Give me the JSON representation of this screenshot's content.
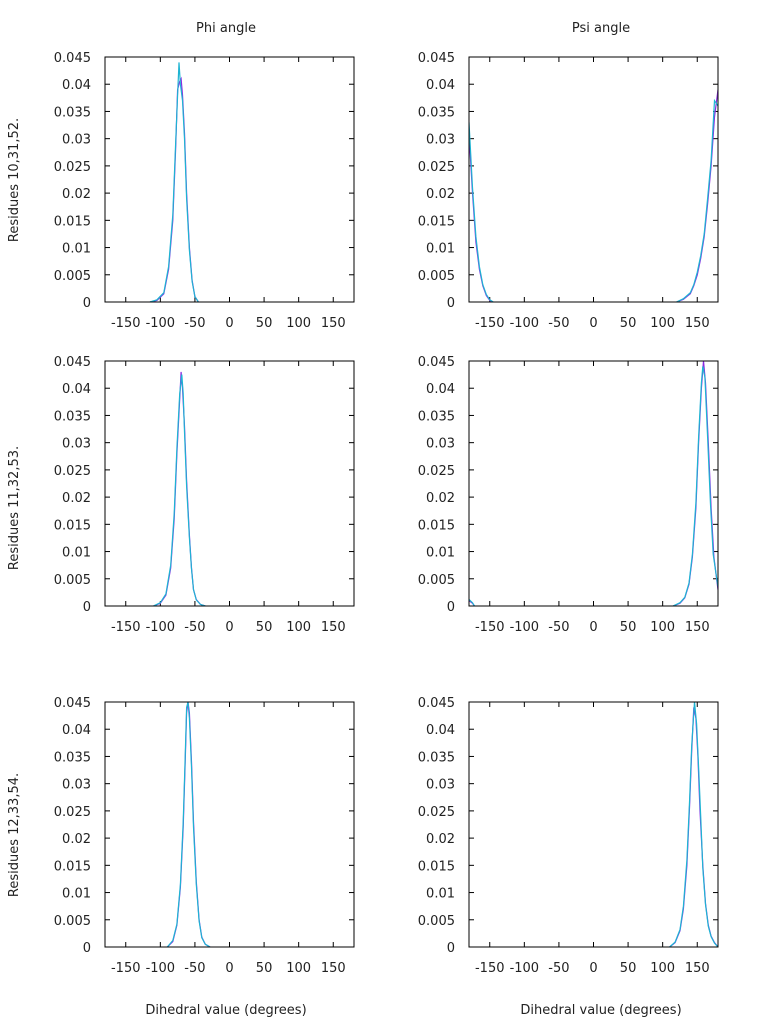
{
  "figure": {
    "column_titles": [
      "Phi angle",
      "Psi angle"
    ],
    "row_titles": [
      "Residues 10,31,52.",
      "Residues 11,32,53.",
      "Residues 12,33,54."
    ],
    "xlabel": "Dihedral value (degrees)"
  },
  "colors": {
    "series_a": "#8a2be2",
    "series_b": "#1eb4d2",
    "frame": "#000000"
  },
  "chart_data": [
    {
      "type": "line",
      "row": 0,
      "col": 0,
      "xlim": [
        -180,
        180
      ],
      "ylim": [
        0,
        0.045
      ],
      "xticks": [
        "-150",
        "-100",
        "-50",
        "0",
        "50",
        "100",
        "150"
      ],
      "yticks": [
        "0",
        "0.005",
        "0.01",
        "0.015",
        "0.02",
        "0.025",
        "0.03",
        "0.035",
        "0.04",
        "0.045"
      ],
      "series": [
        {
          "x": [
            -115,
            -105,
            -95,
            -88,
            -82,
            -78,
            -75,
            -72,
            -70,
            -68,
            -65,
            -62,
            -58,
            -54,
            -50,
            -45
          ],
          "y": [
            0,
            0.0003,
            0.0015,
            0.006,
            0.015,
            0.028,
            0.039,
            0.0405,
            0.041,
            0.038,
            0.031,
            0.02,
            0.01,
            0.004,
            0.001,
            0
          ]
        },
        {
          "x": [
            -115,
            -105,
            -95,
            -88,
            -82,
            -78,
            -75,
            -73,
            -71,
            -68,
            -65,
            -62,
            -58,
            -54,
            -50,
            -45
          ],
          "y": [
            0,
            0.0004,
            0.0017,
            0.0065,
            0.016,
            0.029,
            0.038,
            0.044,
            0.04,
            0.037,
            0.03,
            0.019,
            0.0095,
            0.0038,
            0.001,
            0
          ]
        }
      ]
    },
    {
      "type": "line",
      "row": 0,
      "col": 1,
      "xlim": [
        -180,
        180
      ],
      "ylim": [
        0,
        0.045
      ],
      "xticks": [
        "-150",
        "-100",
        "-50",
        "0",
        "50",
        "100",
        "150"
      ],
      "yticks": [
        "0",
        "0.005",
        "0.01",
        "0.015",
        "0.02",
        "0.025",
        "0.03",
        "0.035",
        "0.04",
        "0.045"
      ],
      "series": [
        {
          "x": [
            -180,
            -175,
            -170,
            -165,
            -160,
            -155,
            -150,
            -145,
            120,
            130,
            140,
            145,
            150,
            155,
            160,
            165,
            170,
            175,
            180
          ],
          "y": [
            0.031,
            0.02,
            0.011,
            0.006,
            0.003,
            0.0012,
            0.0003,
            0,
            0,
            0.0005,
            0.0015,
            0.003,
            0.005,
            0.008,
            0.012,
            0.018,
            0.025,
            0.034,
            0.039
          ]
        },
        {
          "x": [
            -180,
            -175,
            -170,
            -165,
            -160,
            -155,
            -150,
            -145,
            120,
            130,
            140,
            145,
            150,
            155,
            160,
            165,
            170,
            175,
            180
          ],
          "y": [
            0.033,
            0.021,
            0.012,
            0.0065,
            0.0032,
            0.0014,
            0.0004,
            0,
            0,
            0.0006,
            0.0017,
            0.0032,
            0.0055,
            0.0085,
            0.0125,
            0.019,
            0.026,
            0.037,
            0.036
          ]
        }
      ]
    },
    {
      "type": "line",
      "row": 1,
      "col": 0,
      "xlim": [
        -180,
        180
      ],
      "ylim": [
        0,
        0.045
      ],
      "xticks": [
        "-150",
        "-100",
        "-50",
        "0",
        "50",
        "100",
        "150"
      ],
      "yticks": [
        "0",
        "0.005",
        "0.01",
        "0.015",
        "0.02",
        "0.025",
        "0.03",
        "0.035",
        "0.04",
        "0.045"
      ],
      "series": [
        {
          "x": [
            -110,
            -100,
            -92,
            -85,
            -80,
            -76,
            -72,
            -70,
            -68,
            -65,
            -62,
            -58,
            -55,
            -52,
            -48,
            -42,
            -35
          ],
          "y": [
            0,
            0.0005,
            0.002,
            0.007,
            0.016,
            0.028,
            0.038,
            0.043,
            0.04,
            0.033,
            0.023,
            0.013,
            0.007,
            0.003,
            0.0012,
            0.0003,
            0
          ]
        },
        {
          "x": [
            -110,
            -100,
            -92,
            -85,
            -80,
            -76,
            -72,
            -69,
            -67,
            -65,
            -62,
            -58,
            -55,
            -52,
            -48,
            -42,
            -35
          ],
          "y": [
            0,
            0.0006,
            0.0022,
            0.0075,
            0.017,
            0.029,
            0.039,
            0.0425,
            0.039,
            0.032,
            0.022,
            0.0125,
            0.0068,
            0.003,
            0.0011,
            0.0003,
            0
          ]
        }
      ]
    },
    {
      "type": "line",
      "row": 1,
      "col": 1,
      "xlim": [
        -180,
        180
      ],
      "ylim": [
        0,
        0.045
      ],
      "xticks": [
        "-150",
        "-100",
        "-50",
        "0",
        "50",
        "100",
        "150"
      ],
      "yticks": [
        "0",
        "0.005",
        "0.01",
        "0.015",
        "0.02",
        "0.025",
        "0.03",
        "0.035",
        "0.04",
        "0.045"
      ],
      "series": [
        {
          "x": [
            -180,
            -175,
            -172,
            115,
            125,
            132,
            138,
            143,
            148,
            152,
            156,
            159,
            162,
            166,
            170,
            174,
            178,
            180
          ],
          "y": [
            0.001,
            0.0005,
            0,
            0,
            0.0005,
            0.0015,
            0.004,
            0.009,
            0.018,
            0.03,
            0.04,
            0.045,
            0.041,
            0.03,
            0.018,
            0.009,
            0.005,
            0.003
          ]
        },
        {
          "x": [
            -180,
            -175,
            -172,
            115,
            125,
            132,
            138,
            143,
            148,
            152,
            156,
            158,
            161,
            165,
            169,
            173,
            178,
            180
          ],
          "y": [
            0.0012,
            0.0006,
            0,
            0,
            0.0006,
            0.0016,
            0.0042,
            0.0095,
            0.019,
            0.031,
            0.041,
            0.044,
            0.042,
            0.031,
            0.019,
            0.0095,
            0.0052,
            0.0035
          ]
        }
      ]
    },
    {
      "type": "line",
      "row": 2,
      "col": 0,
      "xlim": [
        -180,
        180
      ],
      "ylim": [
        0,
        0.045
      ],
      "xticks": [
        "-150",
        "-100",
        "-50",
        "0",
        "50",
        "100",
        "150"
      ],
      "yticks": [
        "0",
        "0.005",
        "0.01",
        "0.015",
        "0.02",
        "0.025",
        "0.03",
        "0.035",
        "0.04",
        "0.045"
      ],
      "series": [
        {
          "x": [
            -90,
            -82,
            -76,
            -71,
            -67,
            -64,
            -62,
            -60,
            -58,
            -55,
            -52,
            -48,
            -44,
            -40,
            -35,
            -28
          ],
          "y": [
            0,
            0.001,
            0.004,
            0.011,
            0.022,
            0.034,
            0.043,
            0.045,
            0.043,
            0.034,
            0.023,
            0.012,
            0.005,
            0.0018,
            0.0005,
            0
          ]
        },
        {
          "x": [
            -90,
            -82,
            -76,
            -71,
            -67,
            -64,
            -62,
            -60,
            -58,
            -55,
            -52,
            -48,
            -44,
            -40,
            -35,
            -28
          ],
          "y": [
            0,
            0.0012,
            0.0042,
            0.0115,
            0.023,
            0.035,
            0.044,
            0.045,
            0.042,
            0.033,
            0.022,
            0.0115,
            0.0048,
            0.0017,
            0.0005,
            0
          ]
        }
      ]
    },
    {
      "type": "line",
      "row": 2,
      "col": 1,
      "xlim": [
        -180,
        180
      ],
      "ylim": [
        0,
        0.045
      ],
      "xticks": [
        "-150",
        "-100",
        "-50",
        "0",
        "50",
        "100",
        "150"
      ],
      "yticks": [
        "0",
        "0.005",
        "0.01",
        "0.015",
        "0.02",
        "0.025",
        "0.03",
        "0.035",
        "0.04",
        "0.045"
      ],
      "series": [
        {
          "x": [
            110,
            118,
            125,
            130,
            135,
            139,
            142,
            145,
            148,
            151,
            154,
            158,
            162,
            166,
            170,
            175,
            180
          ],
          "y": [
            0,
            0.0008,
            0.003,
            0.007,
            0.015,
            0.026,
            0.036,
            0.044,
            0.042,
            0.035,
            0.025,
            0.015,
            0.008,
            0.004,
            0.002,
            0.0008,
            0
          ]
        },
        {
          "x": [
            110,
            118,
            125,
            130,
            135,
            139,
            142,
            146,
            149,
            152,
            155,
            158,
            162,
            166,
            170,
            175,
            180
          ],
          "y": [
            0,
            0.0009,
            0.0032,
            0.0075,
            0.016,
            0.027,
            0.037,
            0.045,
            0.041,
            0.033,
            0.024,
            0.0145,
            0.0078,
            0.0038,
            0.0019,
            0.0007,
            0
          ]
        }
      ]
    }
  ]
}
